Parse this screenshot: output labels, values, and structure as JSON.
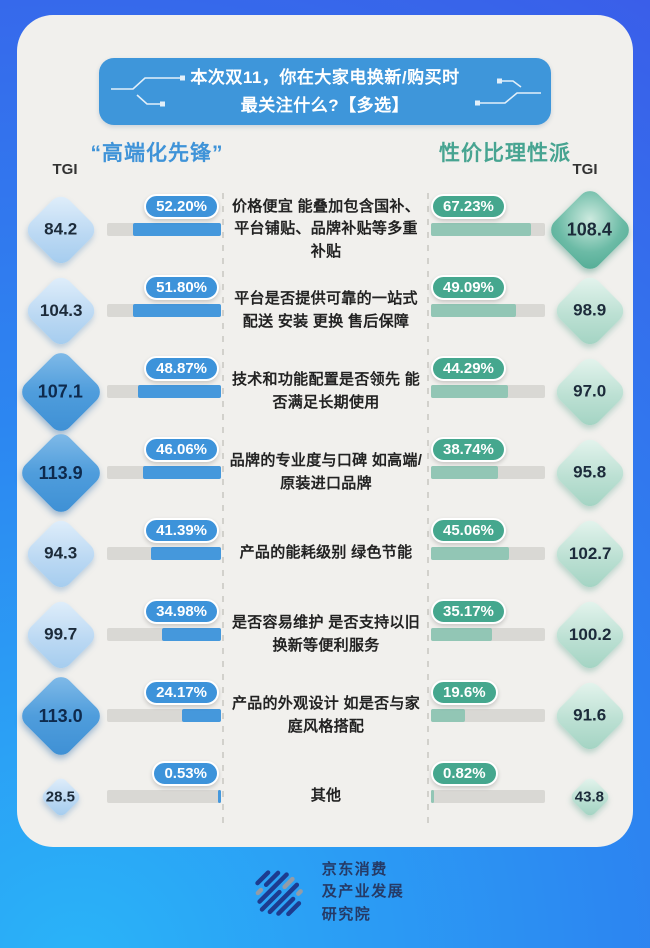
{
  "banner": {
    "line1": "本次双11，你在大家电换新/购买时",
    "line2": "最关注什么?【多选】"
  },
  "headers": {
    "left_title": "“高端化先锋”",
    "right_title": "性价比理性派",
    "tgi_label_left": "TGI",
    "tgi_label_right": "TGI"
  },
  "colors": {
    "blue_accent": "#3e96da",
    "teal_accent": "#45a78e",
    "bar_blue": "#4598dc",
    "bar_teal": "#92c6b5",
    "track_gray": "#d9d8d4",
    "card_bg": "#f1f0ed"
  },
  "rows": [
    {
      "label": "价格便宜 能叠加包含国补、平台铺贴、品牌补贴等多重补贴",
      "left": {
        "tgi": "84.2",
        "pct": "52.20%",
        "fill": 77.6,
        "highlight": false
      },
      "right": {
        "tgi": "108.4",
        "pct": "67.23%",
        "fill": 88,
        "highlight": true
      }
    },
    {
      "label": "平台是否提供可靠的一站式配送 安装 更换 售后保障",
      "left": {
        "tgi": "104.3",
        "pct": "51.80%",
        "fill": 77.0,
        "highlight": false
      },
      "right": {
        "tgi": "98.9",
        "pct": "49.09%",
        "fill": 74.5,
        "highlight": false
      }
    },
    {
      "label": "技术和功能配置是否领先 能否满足长期使用",
      "left": {
        "tgi": "107.1",
        "pct": "48.87%",
        "fill": 72.7,
        "highlight": true
      },
      "right": {
        "tgi": "97.0",
        "pct": "44.29%",
        "fill": 67.5,
        "highlight": false
      }
    },
    {
      "label": "品牌的专业度与口碑 如高端/原装进口品牌",
      "left": {
        "tgi": "113.9",
        "pct": "46.06%",
        "fill": 68.5,
        "highlight": true
      },
      "right": {
        "tgi": "95.8",
        "pct": "38.74%",
        "fill": 59,
        "highlight": false
      }
    },
    {
      "label": "产品的能耗级别 绿色节能",
      "left": {
        "tgi": "94.3",
        "pct": "41.39%",
        "fill": 61.6,
        "highlight": false
      },
      "right": {
        "tgi": "102.7",
        "pct": "45.06%",
        "fill": 68.7,
        "highlight": false
      }
    },
    {
      "label": "是否容易维护 是否支持以旧换新等便利服务",
      "left": {
        "tgi": "99.7",
        "pct": "34.98%",
        "fill": 52.0,
        "highlight": false
      },
      "right": {
        "tgi": "100.2",
        "pct": "35.17%",
        "fill": 53.5,
        "highlight": false
      }
    },
    {
      "label": "产品的外观设计 如是否与家庭风格搭配",
      "left": {
        "tgi": "113.0",
        "pct": "24.17%",
        "fill": 34.0,
        "highlight": true
      },
      "right": {
        "tgi": "91.6",
        "pct": "19.6%",
        "fill": 30,
        "highlight": false
      }
    },
    {
      "label": "其他",
      "left": {
        "tgi": "28.5",
        "pct": "0.53%",
        "fill": 2.5,
        "highlight": false
      },
      "right": {
        "tgi": "43.8",
        "pct": "0.82%",
        "fill": 3,
        "highlight": false
      }
    }
  ],
  "footer": {
    "line1": "京东消费",
    "line2": "及产业发展",
    "line3": "研究院",
    "logo_icon": "jd-research-institute-logo"
  },
  "chart_data": {
    "type": "bar",
    "title": "本次双11，你在大家电换新/购买时最关注什么?【多选】",
    "categories": [
      "价格便宜 能叠加包含国补、平台铺贴、品牌补贴等多重补贴",
      "平台是否提供可靠的一站式配送 安装 更换 售后保障",
      "技术和功能配置是否领先 能否满足长期使用",
      "品牌的专业度与口碑 如高端/原装进口品牌",
      "产品的能耗级别 绿色节能",
      "是否容易维护 是否支持以旧换新等便利服务",
      "产品的外观设计 如是否与家庭风格搭配",
      "其他"
    ],
    "series": [
      {
        "name": "高端化先锋",
        "metric": "选择率%",
        "values": [
          52.2,
          51.8,
          48.87,
          46.06,
          41.39,
          34.98,
          24.17,
          0.53
        ],
        "tgi": [
          84.2,
          104.3,
          107.1,
          113.9,
          94.3,
          99.7,
          113.0,
          28.5
        ]
      },
      {
        "name": "性价比理性派",
        "metric": "选择率%",
        "values": [
          67.23,
          49.09,
          44.29,
          38.74,
          45.06,
          35.17,
          19.6,
          0.82
        ],
        "tgi": [
          108.4,
          98.9,
          97.0,
          95.8,
          102.7,
          100.2,
          91.6,
          43.8
        ]
      }
    ],
    "layout": {
      "orientation": "horizontal-mirrored",
      "bar_scale_max": 67.23,
      "legend_position": "top",
      "grid": false
    }
  }
}
